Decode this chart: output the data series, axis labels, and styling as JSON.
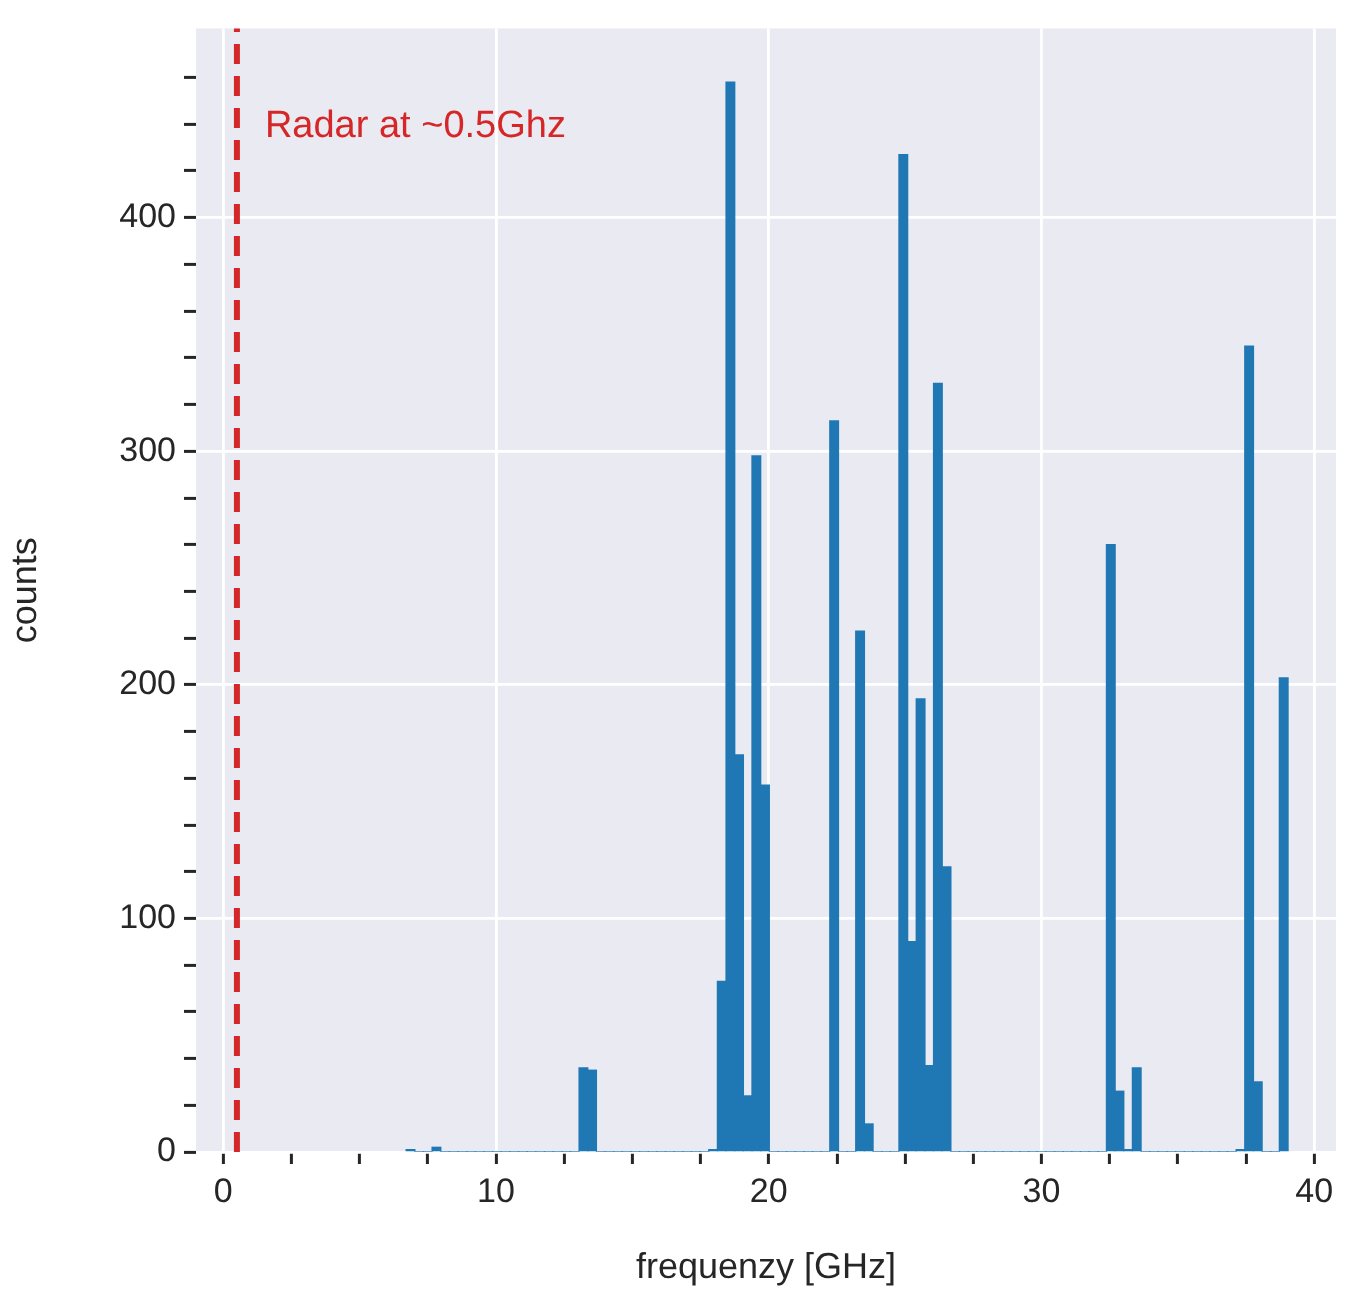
{
  "chart_data": {
    "type": "histogram",
    "xlabel": "frequenzy [GHz]",
    "ylabel": "counts",
    "color": "#1f77b4",
    "bins": [
      6.707,
      7.024,
      7.341,
      7.658,
      7.975,
      8.292,
      8.609,
      8.926,
      9.243,
      9.56,
      9.877,
      10.194,
      10.511,
      10.828,
      11.145,
      11.462,
      11.779,
      12.096,
      12.413,
      12.73,
      13.047,
      13.364,
      13.681,
      13.998,
      14.315,
      14.632,
      14.949,
      15.266,
      15.583,
      15.9,
      16.217,
      16.534,
      16.851,
      17.168,
      17.485,
      17.802,
      18.119,
      18.436,
      18.753,
      19.07,
      19.387,
      19.704,
      20.021,
      20.338,
      20.655,
      20.972,
      21.289,
      21.606,
      21.923,
      22.24,
      22.557,
      22.874,
      23.191,
      23.508,
      23.825,
      24.142,
      24.459,
      24.776,
      25.093,
      25.41,
      25.727,
      26.044,
      26.361,
      26.678,
      26.995,
      27.312,
      27.629,
      27.946,
      28.263,
      28.58,
      28.897,
      29.214,
      29.531,
      29.848,
      30.165,
      30.482,
      30.799,
      31.116,
      31.433,
      31.75,
      32.067,
      32.384,
      32.701,
      33.018,
      33.335,
      33.652,
      33.969,
      34.286,
      34.603,
      34.92,
      35.237,
      35.554,
      35.871,
      36.188,
      36.505,
      36.822,
      37.139,
      37.456,
      37.773,
      38.09,
      38.407,
      38.724,
      39.041
    ],
    "values": [
      1,
      0,
      0,
      2,
      0,
      0,
      0,
      0,
      0,
      0,
      0,
      0,
      0,
      0,
      0,
      0,
      0,
      0,
      0,
      0,
      36,
      35,
      0,
      0,
      0,
      0,
      0,
      0,
      0,
      0,
      0,
      0,
      0,
      0,
      0,
      1,
      73,
      458,
      170,
      24,
      298,
      157,
      0,
      0,
      0,
      0,
      0,
      0,
      0,
      313,
      0,
      0,
      223,
      12,
      0,
      0,
      0,
      427,
      90,
      194,
      37,
      329,
      122,
      0,
      0,
      0,
      0,
      0,
      0,
      0,
      0,
      0,
      0,
      0,
      0,
      0,
      0,
      0,
      0,
      0,
      0,
      260,
      26,
      1,
      36,
      0,
      0,
      0,
      0,
      0,
      0,
      0,
      0,
      0,
      0,
      0,
      1,
      345,
      30,
      0,
      0,
      203
    ],
    "xlim": [
      -1,
      40.8
    ],
    "ylim": [
      0,
      481
    ],
    "xticks": [
      0,
      {
        "value": 2.5,
        "label": null
      },
      {
        "value": 5,
        "label": null
      },
      {
        "value": 7.5,
        "label": null
      },
      10,
      {
        "value": 12.5,
        "label": null
      },
      {
        "value": 15,
        "label": null
      },
      {
        "value": 17.5,
        "label": null
      },
      20,
      {
        "value": 22.5,
        "label": null
      },
      {
        "value": 25,
        "label": null
      },
      {
        "value": 27.5,
        "label": null
      },
      30,
      {
        "value": 32.5,
        "label": null
      },
      {
        "value": 35,
        "label": null
      },
      {
        "value": 37.5,
        "label": null
      },
      40
    ],
    "yticks": [
      0,
      {
        "value": 20,
        "label": null
      },
      {
        "value": 40,
        "label": null
      },
      {
        "value": 60,
        "label": null
      },
      {
        "value": 80,
        "label": null
      },
      100,
      {
        "value": 120,
        "label": null
      },
      {
        "value": 140,
        "label": null
      },
      {
        "value": 160,
        "label": null
      },
      {
        "value": 180,
        "label": null
      },
      200,
      {
        "value": 220,
        "label": null
      },
      {
        "value": 240,
        "label": null
      },
      {
        "value": 260,
        "label": null
      },
      {
        "value": 280,
        "label": null
      },
      300,
      {
        "value": 320,
        "label": null
      },
      {
        "value": 340,
        "label": null
      },
      {
        "value": 360,
        "label": null
      },
      {
        "value": 380,
        "label": null
      },
      400,
      {
        "value": 420,
        "label": null
      },
      {
        "value": 440,
        "label": null
      },
      {
        "value": 460,
        "label": null
      }
    ],
    "grid": true,
    "legend": false,
    "ref_lines": [
      {
        "axis": "x",
        "value": 0.5,
        "label": "Radar at ~0.5Ghz",
        "color": "#d62728",
        "line_style": "dashed"
      }
    ]
  }
}
